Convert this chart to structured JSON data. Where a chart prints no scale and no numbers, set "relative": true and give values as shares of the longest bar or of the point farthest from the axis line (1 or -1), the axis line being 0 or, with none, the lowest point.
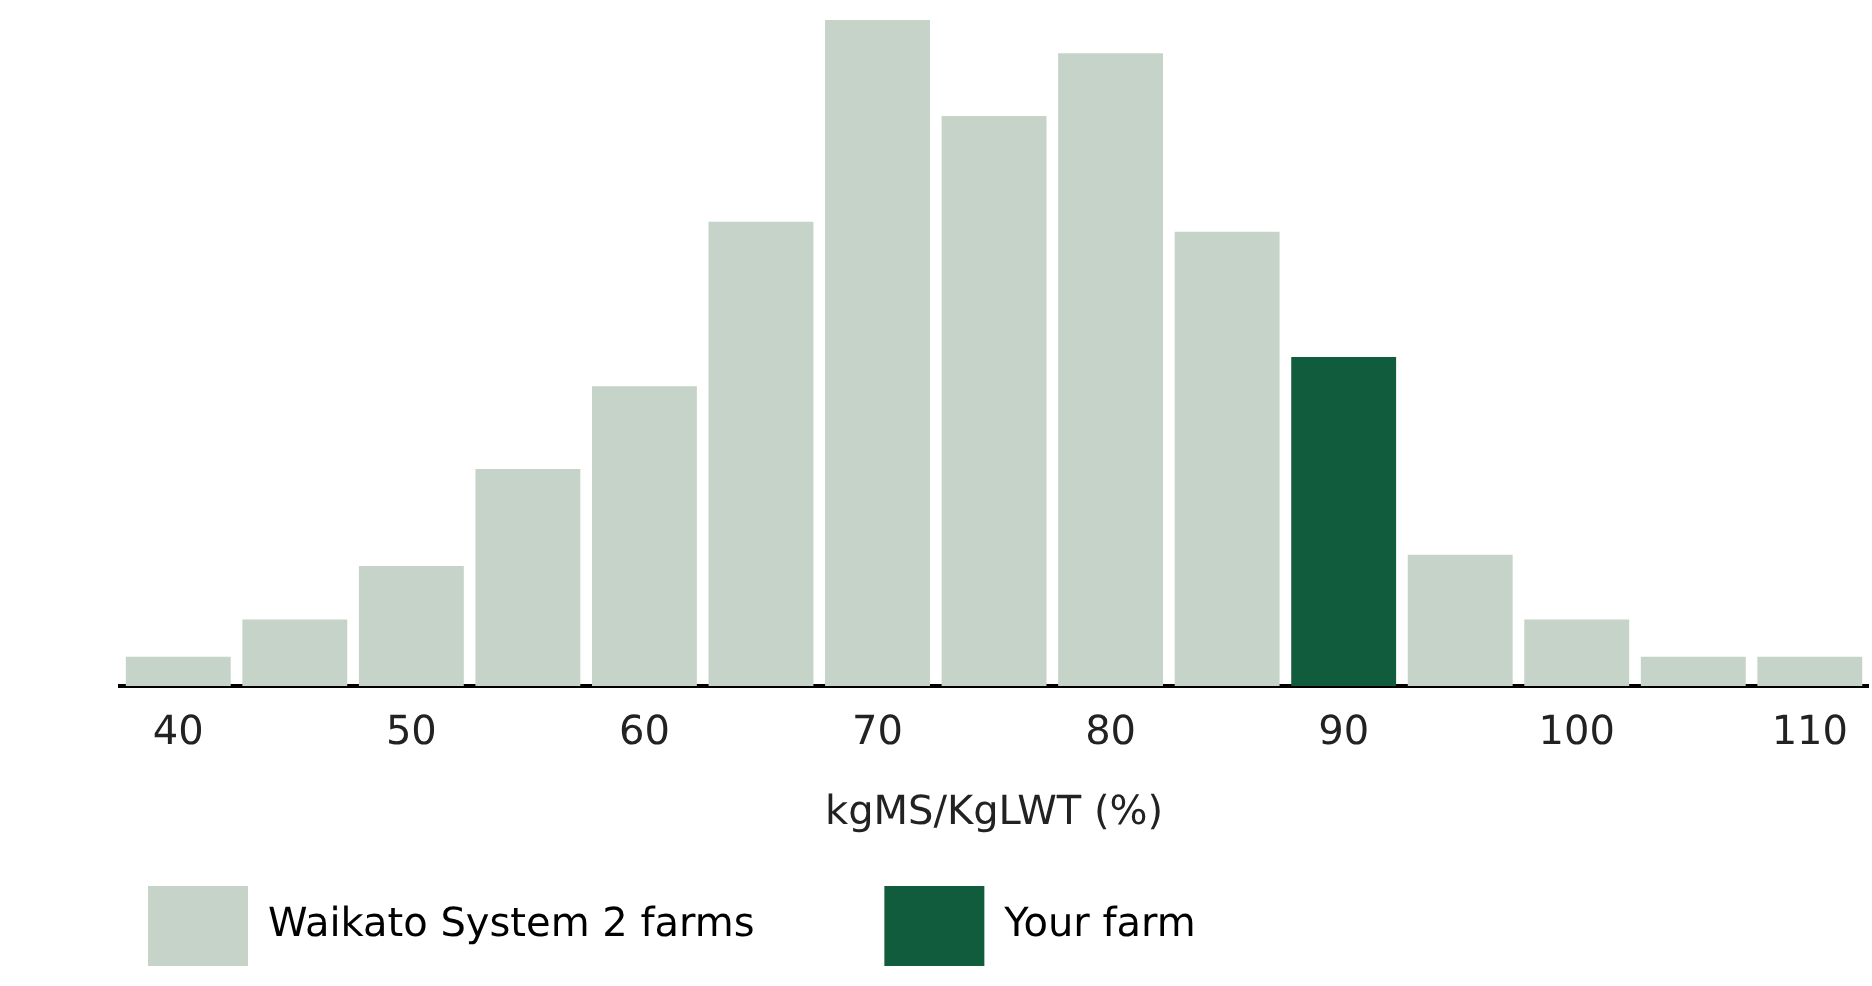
{
  "chart_data": {
    "type": "bar",
    "xlabel": "kgMS/KgLWT (%)",
    "relative": true,
    "stacked": true,
    "grid": false,
    "legend": "bottom left",
    "categories": [
      "40",
      null,
      "50",
      null,
      "60",
      null,
      "70",
      null,
      "80",
      null,
      "90",
      null,
      "100",
      null,
      "110"
    ],
    "series": [
      {
        "name": "Your farm",
        "color": "#105c3c",
        "values": [
          null,
          null,
          null,
          null,
          null,
          null,
          null,
          null,
          null,
          null,
          0.494,
          null,
          null,
          null,
          null
        ]
      },
      {
        "name": "Waikato System 2 farms",
        "color": "#c5d3c9",
        "values": [
          0.044,
          0.1,
          0.18,
          0.326,
          0.45,
          0.697,
          1,
          0.856,
          0.95,
          0.682,
          null,
          0.197,
          0.1,
          0.044,
          0.044
        ]
      }
    ]
  }
}
